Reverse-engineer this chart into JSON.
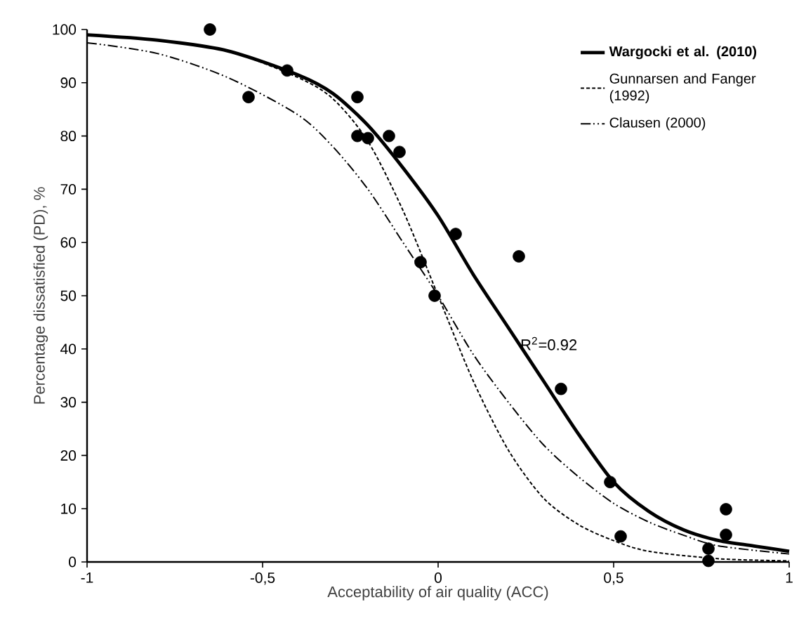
{
  "chart_data": {
    "type": "line",
    "xlabel": "Acceptability of air quality (ACC)",
    "ylabel": "Percentage dissatisfied (PD), %",
    "xlim": [
      -1,
      1
    ],
    "ylim": [
      0,
      100
    ],
    "xticks": [
      {
        "value": -1,
        "label": "-1"
      },
      {
        "value": -0.5,
        "label": "-0,5"
      },
      0,
      {
        "value": 0.5,
        "label": "0,5"
      },
      1
    ],
    "yticks": [
      0,
      10,
      20,
      30,
      40,
      50,
      60,
      70,
      80,
      90,
      100
    ],
    "legend": "top right",
    "grid": false,
    "series": [
      {
        "name": "Wargocki et al. (2010)",
        "color": "#000000",
        "line_style": "solid",
        "marker": "none",
        "x": [
          -1,
          -0.8,
          -0.6,
          -0.4,
          -0.3,
          -0.2,
          -0.1,
          0,
          0.1,
          0.2,
          0.3,
          0.4,
          0.5,
          0.6,
          0.7,
          0.8,
          0.9,
          1
        ],
        "values": [
          99,
          98,
          96,
          91.5,
          88,
          82,
          74,
          65,
          54,
          44,
          34,
          24,
          15,
          9.5,
          6,
          4,
          3,
          2
        ]
      },
      {
        "name": "Gunnarsen and Fanger (1992)",
        "color": "#000000",
        "line_style": "dashed",
        "marker": "none",
        "x": [
          -1,
          -0.8,
          -0.6,
          -0.4,
          -0.3,
          -0.2,
          -0.1,
          0,
          0.1,
          0.2,
          0.3,
          0.4,
          0.5,
          0.6,
          0.8,
          1
        ],
        "values": [
          99,
          98,
          96,
          91,
          87,
          79,
          66,
          50,
          34,
          21,
          12,
          7,
          4,
          2,
          0.6,
          0.2
        ]
      },
      {
        "name": "Clausen (2000)",
        "color": "#000000",
        "line_style": "dashdotdot",
        "marker": "none",
        "x": [
          -1,
          -0.8,
          -0.6,
          -0.4,
          -0.3,
          -0.2,
          -0.1,
          0,
          0.1,
          0.2,
          0.3,
          0.4,
          0.5,
          0.6,
          0.7,
          0.8,
          1
        ],
        "values": [
          97.5,
          95.5,
          91,
          84,
          78,
          70,
          60,
          50,
          39,
          30,
          22,
          16,
          11,
          7.5,
          5,
          3,
          1.5
        ]
      },
      {
        "type": "scatter",
        "color": "#000000",
        "marker": "circle",
        "x": [
          -0.65,
          -0.54,
          -0.43,
          -0.23,
          -0.23,
          -0.2,
          -0.14,
          -0.11,
          0.05,
          -0.05,
          -0.01,
          0.23,
          0.35,
          0.49,
          0.52,
          0.77,
          0.77,
          0.82,
          0.82
        ],
        "values": [
          100,
          87.3,
          92.3,
          87.3,
          80,
          79.6,
          80,
          77,
          61.6,
          56.3,
          50,
          57.4,
          32.5,
          15,
          4.8,
          2.5,
          0.2,
          9.9,
          5.1
        ]
      }
    ],
    "annotations": [
      {
        "text": "R$^{2}$=0.92",
        "x": 0.22,
        "y": 41
      }
    ]
  }
}
